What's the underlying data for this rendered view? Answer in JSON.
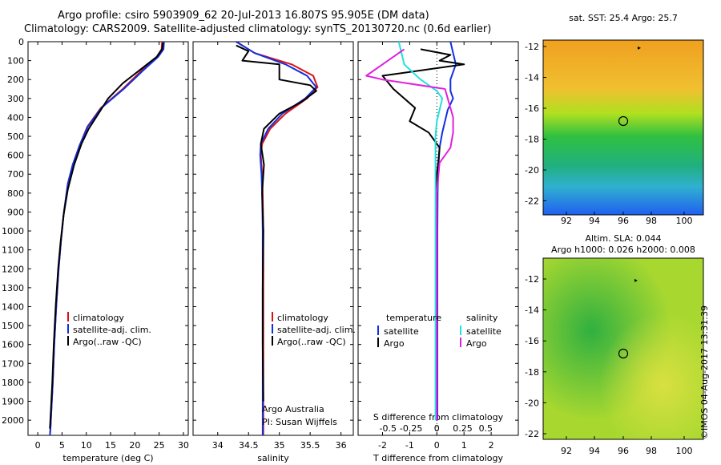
{
  "header": {
    "title_line1": "Argo profile: csiro 5903909_62 20-Jul-2013 16.807S 95.905E (DM data)",
    "title_line2": "Climatology: CARS2009. Satellite-adjusted climatology: synTS_20130720.nc (0.6d earlier)"
  },
  "colors": {
    "climatology": "#e01010",
    "satellite": "#1030e0",
    "argo": "#000000",
    "salinity_satellite": "#22e0e0",
    "salinity_argo": "#e020e0"
  },
  "depth_axis": {
    "ticks": [
      0,
      100,
      200,
      300,
      400,
      500,
      600,
      700,
      800,
      900,
      1000,
      1100,
      1200,
      1300,
      1400,
      1500,
      1600,
      1700,
      1800,
      1900,
      2000
    ],
    "ylim": [
      0,
      2080
    ]
  },
  "chart_data": [
    {
      "type": "line",
      "xlabel": "temperature (deg C)",
      "xlim": [
        -2,
        31
      ],
      "xticks": [
        0,
        5,
        10,
        15,
        20,
        25,
        30
      ],
      "legend": [
        "climatology",
        "satellite-adj. clim.",
        "Argo(..raw -QC)"
      ],
      "series": [
        {
          "name": "climatology",
          "x": [
            25.6,
            25.5,
            24.5,
            21.5,
            17.5,
            13.0,
            10.2,
            8.6,
            7.2,
            6.2,
            5.4,
            4.8,
            4.3,
            3.8,
            3.4,
            3.1,
            2.8,
            2.6,
            2.5
          ],
          "y": [
            0,
            40,
            80,
            150,
            250,
            350,
            450,
            550,
            650,
            750,
            900,
            1050,
            1200,
            1400,
            1600,
            1800,
            1950,
            2050,
            2080
          ]
        },
        {
          "name": "satellite-adj. clim.",
          "x": [
            26.0,
            25.9,
            24.8,
            21.8,
            17.7,
            13.1,
            10.3,
            8.6,
            7.2,
            6.2,
            5.4,
            4.8,
            4.3,
            3.8,
            3.4,
            3.1,
            2.8,
            2.6,
            2.5
          ],
          "y": [
            0,
            40,
            80,
            150,
            250,
            350,
            450,
            550,
            650,
            750,
            900,
            1050,
            1200,
            1400,
            1600,
            1800,
            1950,
            2050,
            2080
          ]
        },
        {
          "name": "Argo(..raw -QC)",
          "x": [
            25.8,
            25.6,
            24.5,
            22.0,
            19.5,
            17.5,
            14.5,
            12.5,
            10.5,
            9.0,
            7.5,
            6.2,
            5.3,
            4.7,
            4.2,
            3.7,
            3.3,
            3.0,
            2.7,
            2.5
          ],
          "y": [
            5,
            40,
            80,
            130,
            180,
            220,
            300,
            380,
            460,
            540,
            650,
            780,
            920,
            1060,
            1200,
            1400,
            1600,
            1800,
            1950,
            2045
          ]
        }
      ]
    },
    {
      "type": "line",
      "xlabel": "salinity",
      "xlim": [
        33.6,
        36.2
      ],
      "xticks": [
        34,
        34.5,
        35,
        35.5,
        36
      ],
      "legend": [
        "climatology",
        "satellite-adj. clim.",
        "Argo(..raw -QC)"
      ],
      "annotations": [
        "Argo Australia",
        "PI: Susan Wijffels"
      ],
      "series": [
        {
          "name": "climatology",
          "x": [
            34.3,
            34.6,
            35.2,
            35.55,
            35.62,
            35.45,
            35.1,
            34.85,
            34.72,
            34.7,
            34.72,
            34.73,
            34.74,
            34.74,
            34.74,
            34.74,
            34.74
          ],
          "y": [
            0,
            60,
            120,
            180,
            240,
            300,
            380,
            460,
            540,
            600,
            700,
            800,
            1000,
            1300,
            1600,
            1900,
            2080
          ]
        },
        {
          "name": "satellite-adj. clim.",
          "x": [
            34.3,
            34.6,
            35.1,
            35.45,
            35.6,
            35.42,
            35.05,
            34.82,
            34.7,
            34.69,
            34.71,
            34.72,
            34.73,
            34.73,
            34.73,
            34.73,
            34.73
          ],
          "y": [
            0,
            60,
            120,
            180,
            240,
            300,
            380,
            460,
            540,
            600,
            700,
            800,
            1000,
            1300,
            1600,
            1900,
            2080
          ]
        },
        {
          "name": "Argo(..raw -QC)",
          "x": [
            34.3,
            34.5,
            34.4,
            35.0,
            35.0,
            35.5,
            35.6,
            35.35,
            35.0,
            34.75,
            34.7,
            34.75,
            34.72,
            34.74,
            34.73,
            34.73,
            34.74
          ],
          "y": [
            20,
            50,
            100,
            120,
            200,
            230,
            260,
            320,
            380,
            460,
            540,
            650,
            800,
            1000,
            1300,
            1600,
            1900
          ]
        }
      ]
    },
    {
      "type": "line",
      "xlabel": "T difference from climatology",
      "top_xlabel": "S difference from climatology",
      "xlim": [
        -2.9,
        3.0
      ],
      "xticks": [
        -2,
        -1,
        0,
        1,
        2
      ],
      "top_xticks": [
        "-0.5",
        "-0.25",
        "0",
        "0.25",
        "0.5"
      ],
      "legend_temperature": [
        "temperature",
        "satellite",
        "Argo"
      ],
      "legend_salinity": [
        "salinity",
        "satellite",
        "Argo"
      ],
      "series": [
        {
          "name": "satellite",
          "x": [
            0.5,
            0.6,
            0.7,
            0.5,
            0.5,
            0.6,
            0.4,
            0.3,
            0.2,
            0.1,
            0.05,
            0.03,
            0.02,
            0.02,
            0.02
          ],
          "y": [
            0,
            60,
            120,
            200,
            260,
            300,
            360,
            420,
            480,
            560,
            680,
            800,
            1000,
            1500,
            2000
          ]
        },
        {
          "name": "Argo",
          "x": [
            -0.6,
            0.5,
            0.1,
            1.0,
            -2.0,
            -1.6,
            -1.2,
            -0.8,
            -1.0,
            -0.3,
            0.1,
            0.05,
            0.0,
            0.0,
            0.0,
            0.0
          ],
          "y": [
            40,
            70,
            100,
            120,
            180,
            250,
            300,
            350,
            420,
            480,
            560,
            640,
            700,
            900,
            1500,
            2000
          ]
        },
        {
          "name": "satellite",
          "x": [
            -1.4,
            -1.3,
            -1.2,
            -0.6,
            0.0,
            0.2,
            0.1,
            0.0,
            -0.05,
            -0.05,
            -0.05
          ],
          "y": [
            0,
            60,
            120,
            200,
            260,
            300,
            360,
            420,
            500,
            800,
            2000
          ]
        },
        {
          "name": "Argo",
          "x": [
            -1.2,
            -1.8,
            -2.6,
            -2.0,
            0.3,
            0.4,
            0.6,
            0.6,
            0.5,
            0.1,
            0.0,
            0.0
          ],
          "y": [
            40,
            100,
            180,
            200,
            250,
            300,
            400,
            480,
            560,
            640,
            800,
            2000
          ]
        }
      ]
    }
  ],
  "maps": [
    {
      "title": "sat. SST: 25.4 Argo: 25.7",
      "xticks": [
        "92",
        "94",
        "96",
        "98",
        "100"
      ],
      "yticks": [
        "-12",
        "-14",
        "-16",
        "-18",
        "-20",
        "-22"
      ]
    },
    {
      "title_line1": "Altim. SLA: 0.044",
      "title_line2": "Argo h1000: 0.026 h2000: 0.008",
      "xticks": [
        "92",
        "94",
        "96",
        "98",
        "100"
      ],
      "yticks": [
        "-12",
        "-14",
        "-16",
        "-18",
        "-20",
        "-22"
      ]
    }
  ],
  "footer_stamp": "©IMOS 04-Aug-2017 13:31:39"
}
